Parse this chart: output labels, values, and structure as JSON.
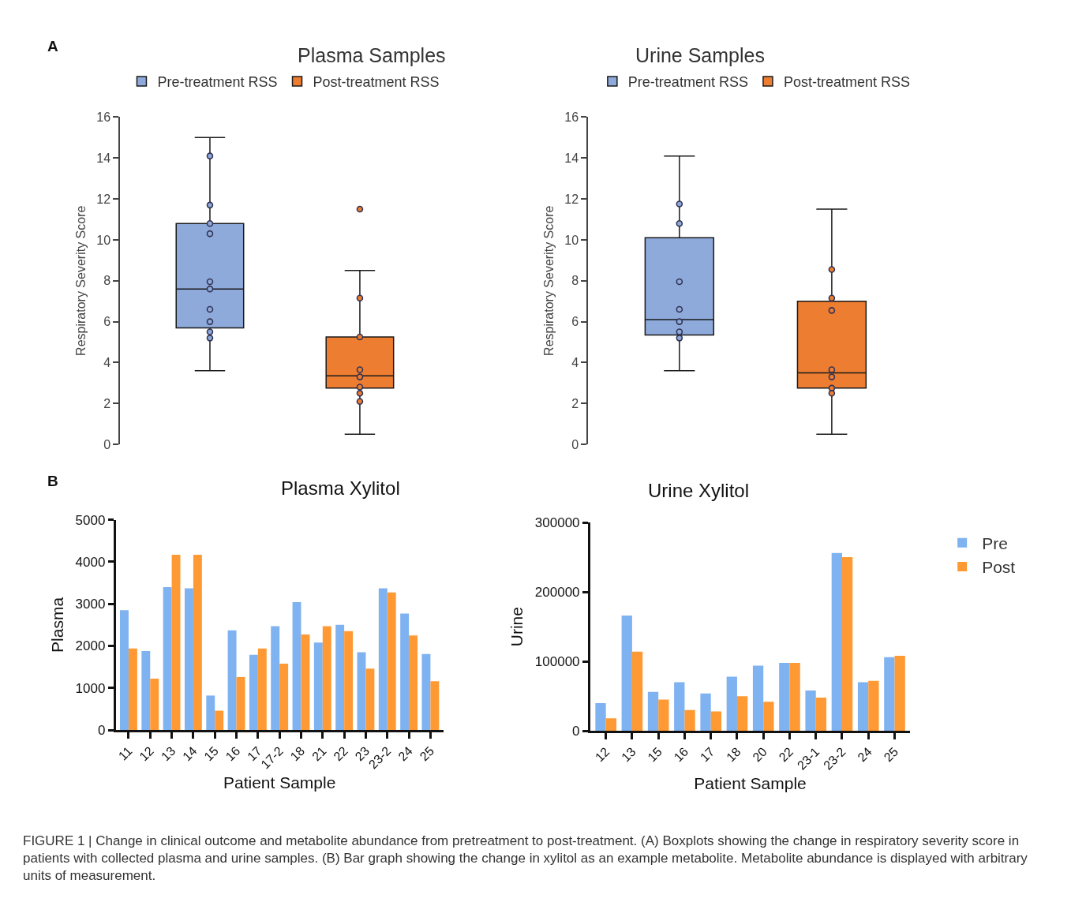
{
  "chart_data": [
    {
      "type": "box",
      "title": "Plasma Samples",
      "ylabel": "Respiratory Severity Score",
      "categories": [
        "Pre-treatment RSS",
        "Post-treatment RSS"
      ],
      "tick_labels": "y",
      "legend": "top",
      "ylim": [
        0,
        16
      ],
      "yticks": [
        0,
        2,
        4,
        6,
        8,
        10,
        12,
        14,
        16
      ],
      "annotations": [
        "A"
      ],
      "series": [
        {
          "type": "box",
          "name": "Pre-treatment RSS",
          "color": "#8eaadb",
          "boxes": [
            {
              "low": 3.6,
              "q1": 5.7,
              "median": 7.6,
              "q3": 10.8,
              "high": 15
            },
            null
          ]
        },
        {
          "type": "box",
          "name": "Post-treatment RSS",
          "color": "#ed7d31",
          "boxes": [
            null,
            {
              "low": 0.5,
              "q1": 2.75,
              "median": 3.35,
              "q3": 5.25,
              "high": 8.5
            }
          ]
        },
        {
          "type": "scatter",
          "marker": "circle",
          "color": "#8eaadb",
          "x": [
            "Pre-treatment RSS",
            "Pre-treatment RSS",
            "Pre-treatment RSS",
            "Pre-treatment RSS",
            "Pre-treatment RSS",
            "Pre-treatment RSS",
            "Pre-treatment RSS",
            "Pre-treatment RSS",
            "Pre-treatment RSS",
            "Pre-treatment RSS"
          ],
          "values": [
            14.1,
            11.7,
            10.8,
            10.3,
            7.95,
            7.6,
            6.6,
            6.0,
            5.5,
            5.2
          ]
        },
        {
          "type": "scatter",
          "marker": "circle",
          "color": "#ed7d31",
          "x": [
            "Post-treatment RSS",
            "Post-treatment RSS",
            "Post-treatment RSS",
            "Post-treatment RSS",
            "Post-treatment RSS",
            "Post-treatment RSS",
            "Post-treatment RSS",
            "Post-treatment RSS"
          ],
          "values": [
            11.5,
            7.15,
            5.25,
            3.65,
            3.3,
            2.8,
            2.5,
            2.1
          ]
        }
      ]
    },
    {
      "type": "box",
      "title": "Urine Samples",
      "ylabel": "Respiratory Severity Score",
      "categories": [
        "Pre-treatment RSS",
        "Post-treatment RSS"
      ],
      "tick_labels": "y",
      "legend": "top",
      "ylim": [
        0,
        16
      ],
      "yticks": [
        0,
        2,
        4,
        6,
        8,
        10,
        12,
        14,
        16
      ],
      "series": [
        {
          "type": "box",
          "name": "Pre-treatment RSS",
          "color": "#8eaadb",
          "boxes": [
            {
              "low": 3.6,
              "q1": 5.35,
              "median": 6.1,
              "q3": 10.1,
              "high": 14.1
            },
            null
          ]
        },
        {
          "type": "box",
          "name": "Post-treatment RSS",
          "color": "#ed7d31",
          "boxes": [
            null,
            {
              "low": 0.5,
              "q1": 2.75,
              "median": 3.5,
              "q3": 7.0,
              "high": 11.5
            }
          ]
        },
        {
          "type": "scatter",
          "marker": "circle",
          "color": "#8eaadb",
          "x": [
            "Pre-treatment RSS",
            "Pre-treatment RSS",
            "Pre-treatment RSS",
            "Pre-treatment RSS",
            "Pre-treatment RSS",
            "Pre-treatment RSS",
            "Pre-treatment RSS"
          ],
          "values": [
            11.75,
            10.8,
            7.95,
            6.6,
            6.0,
            5.5,
            5.2
          ]
        },
        {
          "type": "scatter",
          "marker": "circle",
          "color": "#ed7d31",
          "x": [
            "Post-treatment RSS",
            "Post-treatment RSS",
            "Post-treatment RSS",
            "Post-treatment RSS",
            "Post-treatment RSS",
            "Post-treatment RSS",
            "Post-treatment RSS"
          ],
          "values": [
            8.55,
            7.15,
            6.55,
            3.65,
            3.3,
            2.75,
            2.5
          ]
        }
      ]
    },
    {
      "type": "bar",
      "title": "Plasma Xylitol",
      "xlabel": "Patient Sample",
      "ylabel": "Plasma",
      "categories": [
        "11",
        "12",
        "13",
        "14",
        "15",
        "16",
        "17",
        "17-2",
        "18",
        "21",
        "22",
        "23",
        "23-2",
        "24",
        "25"
      ],
      "ylim": [
        0,
        5000
      ],
      "yticks": [
        0,
        1000,
        2000,
        3000,
        4000,
        5000
      ],
      "annotations": [
        "B"
      ],
      "series": [
        {
          "color": "#7fb2f0",
          "values": [
            2850,
            1880,
            3400,
            3370,
            820,
            2370,
            1790,
            2470,
            3040,
            2080,
            2500,
            1850,
            3370,
            2770,
            1810
          ]
        },
        {
          "color": "#ff9933",
          "values": [
            1940,
            1220,
            4170,
            4170,
            460,
            1260,
            1940,
            1580,
            2270,
            2470,
            2350,
            1460,
            3270,
            2250,
            1160
          ]
        }
      ]
    },
    {
      "type": "bar",
      "title": "Urine Xylitol",
      "xlabel": "Patient Sample",
      "ylabel": "Urine",
      "categories": [
        "12",
        "13",
        "15",
        "16",
        "17",
        "18",
        "20",
        "22",
        "23-1",
        "23-2",
        "24",
        "25"
      ],
      "ylim": [
        0,
        300000
      ],
      "yticks": [
        0,
        100000,
        200000,
        300000
      ],
      "legend": "right",
      "annotations": [
        "FIGURE 1 | Change in clinical outcome and metabolite abundance from pretreatment to post-treatment. (A) Boxplots showing the change in respiratory severity score in patients with collected plasma and urine samples. (B) Bar graph showing the change in xylitol as an example metabolite. Metabolite abundance is displayed with arbitrary units of measurement."
      ],
      "series": [
        {
          "name": "Pre",
          "color": "#7fb2f0",
          "values": [
            40000,
            166000,
            56000,
            70000,
            54000,
            78000,
            94000,
            98000,
            58000,
            256000,
            70000,
            106000
          ]
        },
        {
          "name": "Post",
          "color": "#ff9933",
          "values": [
            18000,
            114000,
            45000,
            30000,
            28000,
            50000,
            42000,
            98000,
            48000,
            250000,
            72000,
            108000
          ]
        }
      ]
    }
  ]
}
